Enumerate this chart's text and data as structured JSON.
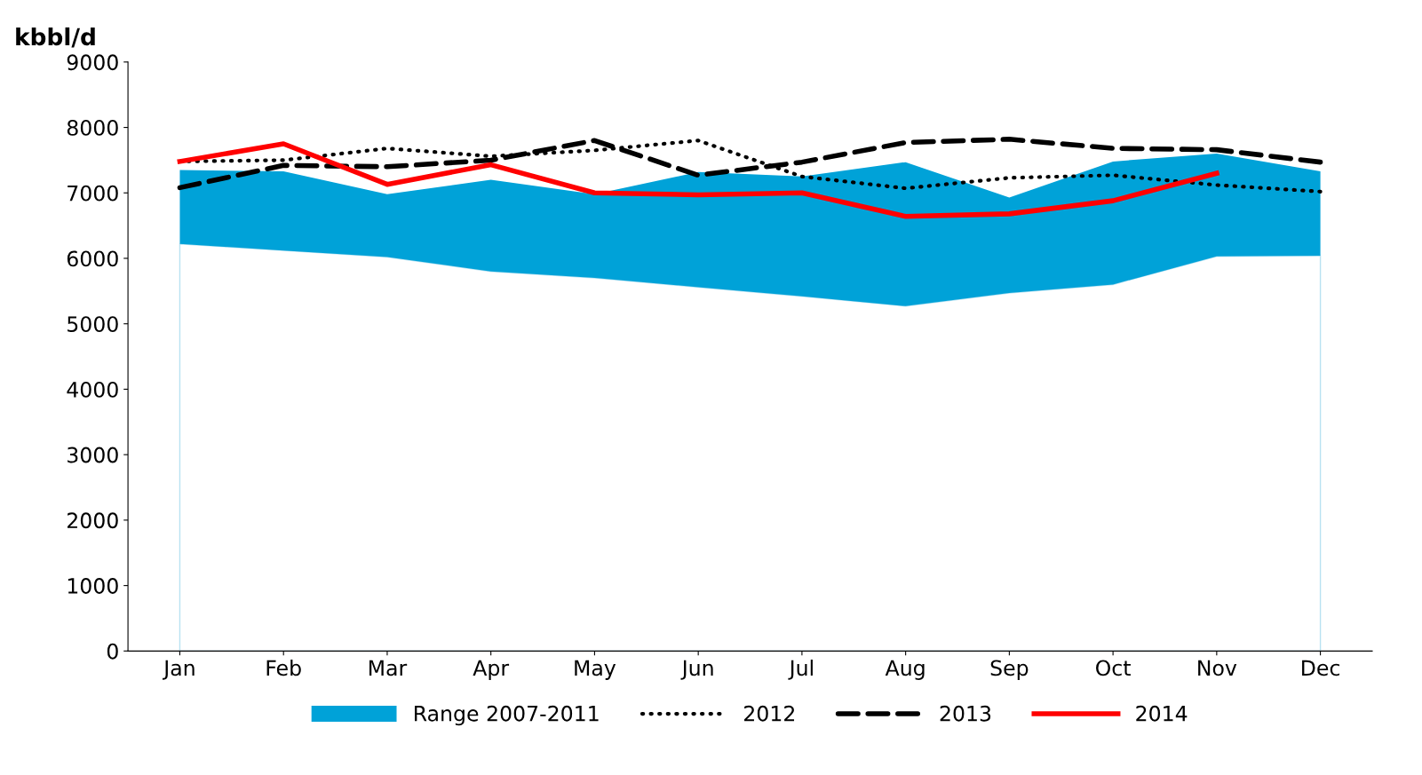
{
  "chart_data": {
    "type": "line",
    "ylabel": "kbbl/d",
    "categories": [
      "Jan",
      "Feb",
      "Mar",
      "Apr",
      "May",
      "Jun",
      "Jul",
      "Aug",
      "Sep",
      "Oct",
      "Nov",
      "Dec"
    ],
    "ylim": [
      0,
      9000
    ],
    "yticks": [
      0,
      1000,
      2000,
      3000,
      4000,
      5000,
      6000,
      7000,
      8000,
      9000
    ],
    "grid": false,
    "legend": "bottom",
    "marker": "none",
    "stacked": true,
    "series": [
      {
        "type": "area",
        "color": "#ffffff",
        "values": [
          6220,
          6120,
          6020,
          5800,
          5700,
          5560,
          5420,
          5270,
          5470,
          5600,
          6030,
          6040
        ]
      },
      {
        "name": "Range 2007-2011",
        "type": "area",
        "color": "#00a2d8",
        "values": [
          1130,
          1210,
          960,
          1400,
          1280,
          1760,
          1830,
          2200,
          1460,
          1880,
          1570,
          1290
        ]
      },
      {
        "name": "2012",
        "color": "#000000",
        "line_style": "dotted",
        "values": [
          7480,
          7500,
          7680,
          7560,
          7650,
          7800,
          7250,
          7070,
          7230,
          7270,
          7120,
          7020
        ]
      },
      {
        "name": "2013",
        "color": "#000000",
        "line_style": "dashed",
        "values": [
          7080,
          7420,
          7400,
          7500,
          7800,
          7270,
          7470,
          7770,
          7820,
          7680,
          7660,
          7470
        ]
      },
      {
        "name": "2014",
        "color": "#ff0000",
        "line_style": "solid",
        "values": [
          7480,
          7750,
          7130,
          7430,
          7000,
          6970,
          7000,
          6640,
          6680,
          6880,
          7300,
          null
        ]
      }
    ]
  }
}
